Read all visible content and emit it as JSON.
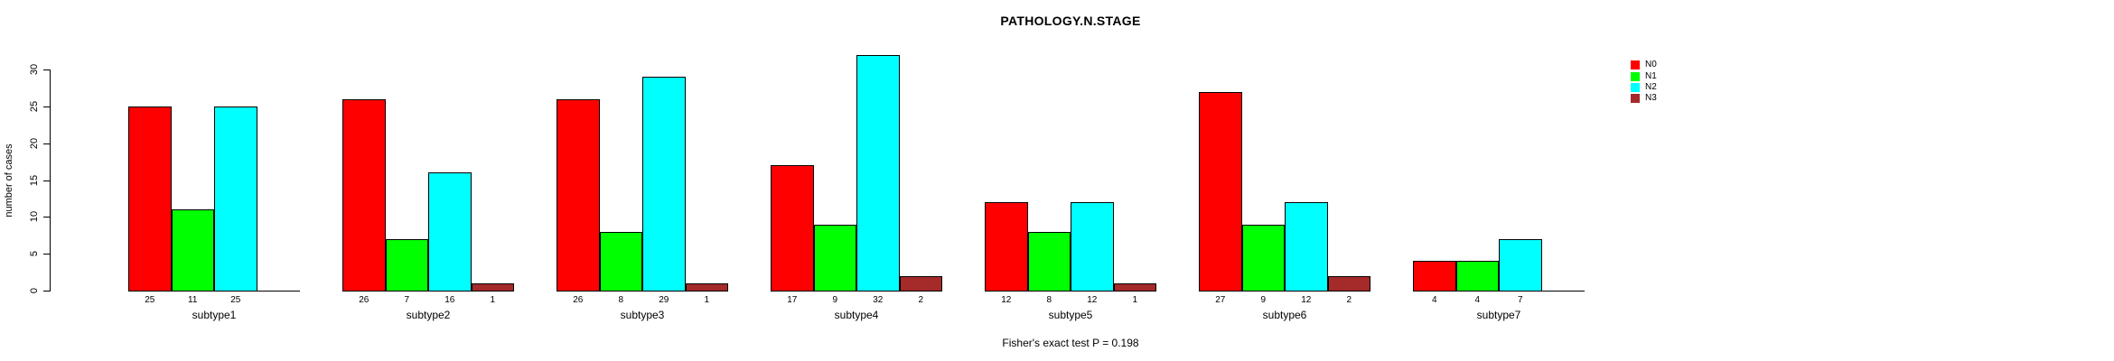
{
  "title": "PATHOLOGY.N.STAGE",
  "footer": "Fisher's exact test P = 0.198",
  "y_axis": {
    "label": "number of cases",
    "ticks": [
      "0",
      "5",
      "10",
      "15",
      "20",
      "25",
      "30"
    ]
  },
  "legend": {
    "items": [
      {
        "label": "N0",
        "color": "#FF0000"
      },
      {
        "label": "N1",
        "color": "#00FF00"
      },
      {
        "label": "N2",
        "color": "#00FFFF"
      },
      {
        "label": "N3",
        "color": "#A52A2A"
      }
    ]
  },
  "chart_data": {
    "type": "bar",
    "grouped": true,
    "title": "PATHOLOGY.N.STAGE",
    "xlabel": "",
    "ylabel": "number of cases",
    "ylim": [
      0,
      30
    ],
    "yticks": [
      0,
      5,
      10,
      15,
      20,
      25,
      30
    ],
    "grid": false,
    "legend_position": "right",
    "categories": [
      "subtype1",
      "subtype2",
      "subtype3",
      "subtype4",
      "subtype5",
      "subtype6",
      "subtype7"
    ],
    "series": [
      {
        "name": "N0",
        "color": "#FF0000",
        "values": [
          25,
          26,
          26,
          17,
          12,
          27,
          4
        ]
      },
      {
        "name": "N1",
        "color": "#00FF00",
        "values": [
          11,
          7,
          8,
          9,
          8,
          9,
          4
        ]
      },
      {
        "name": "N2",
        "color": "#00FFFF",
        "values": [
          25,
          16,
          29,
          32,
          12,
          12,
          7
        ]
      },
      {
        "name": "N3",
        "color": "#A52A2A",
        "values": [
          0,
          1,
          1,
          2,
          1,
          2,
          0
        ]
      }
    ],
    "bar_value_labels": [
      [
        "25",
        "11",
        "25",
        ""
      ],
      [
        "26",
        "7",
        "16",
        "1"
      ],
      [
        "26",
        "8",
        "29",
        "1"
      ],
      [
        "17",
        "9",
        "32",
        "2"
      ],
      [
        "12",
        "8",
        "12",
        "1"
      ],
      [
        "27",
        "9",
        "12",
        "2"
      ],
      [
        "4",
        "4",
        "7",
        ""
      ]
    ],
    "annotation": "Fisher's exact test P = 0.198"
  }
}
